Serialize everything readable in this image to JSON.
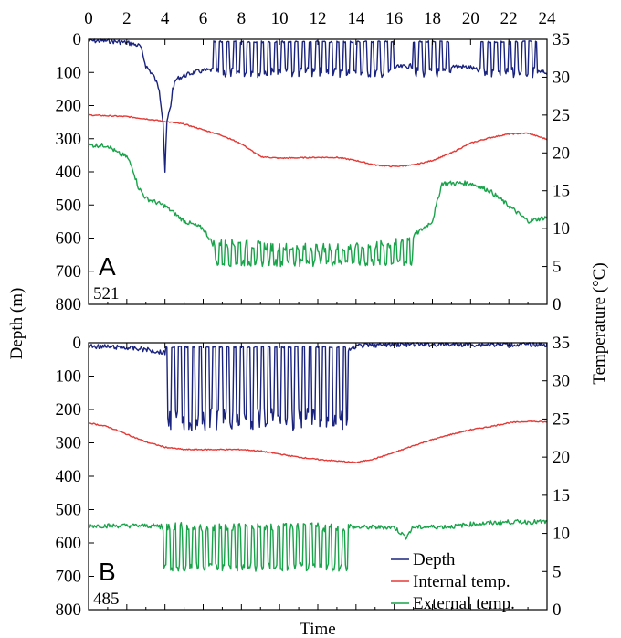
{
  "chart_data": [
    {
      "type": "line",
      "panel_label": "A",
      "tag_id": "521",
      "x_range": [
        0,
        24
      ],
      "depth_range": [
        0,
        800
      ],
      "temp_range": [
        0,
        35
      ],
      "x_ticks": [
        0,
        2,
        4,
        6,
        8,
        10,
        12,
        14,
        16,
        18,
        20,
        22,
        24
      ],
      "depth_ticks": [
        0,
        100,
        200,
        300,
        400,
        500,
        600,
        700,
        800
      ],
      "temp_ticks": [
        0,
        5,
        10,
        15,
        20,
        25,
        30,
        35
      ],
      "series": [
        {
          "name": "Depth",
          "axis": "left",
          "color": "#1a237e",
          "points": [
            [
              0,
              5
            ],
            [
              1,
              5
            ],
            [
              2,
              10
            ],
            [
              2.7,
              20
            ],
            [
              3,
              80
            ],
            [
              3.4,
              110
            ],
            [
              3.7,
              150
            ],
            [
              3.9,
              250
            ],
            [
              4.0,
              400
            ],
            [
              4.1,
              250
            ],
            [
              4.3,
              200
            ],
            [
              4.4,
              150
            ],
            [
              4.6,
              120
            ],
            [
              5,
              110
            ],
            [
              5.5,
              100
            ],
            [
              6,
              95
            ],
            [
              7,
              90
            ],
            [
              8,
              85
            ],
            [
              10,
              80
            ],
            [
              12,
              80
            ],
            [
              14,
              85
            ],
            [
              15,
              90
            ],
            [
              16,
              85
            ],
            [
              17,
              80
            ],
            [
              18,
              75
            ],
            [
              19,
              80
            ],
            [
              20,
              85
            ],
            [
              21,
              110
            ],
            [
              22,
              150
            ],
            [
              23,
              100
            ],
            [
              24,
              100
            ]
          ],
          "dive_spans": [
            [
              6.5,
              16
            ],
            [
              17,
              19
            ],
            [
              20.5,
              23.5
            ]
          ],
          "dive_depth": 100,
          "surface_depth": 5
        },
        {
          "name": "Internal temp.",
          "axis": "right",
          "color": "#e53935",
          "points": [
            [
              0,
              25
            ],
            [
              2,
              24.8
            ],
            [
              3,
              24.5
            ],
            [
              5,
              23.8
            ],
            [
              7,
              22.3
            ],
            [
              8,
              21.2
            ],
            [
              9,
              19.5
            ],
            [
              10,
              19.3
            ],
            [
              12,
              19.4
            ],
            [
              13,
              19.4
            ],
            [
              14,
              19
            ],
            [
              15,
              18.4
            ],
            [
              16,
              18.2
            ],
            [
              17,
              18.4
            ],
            [
              18,
              19
            ],
            [
              19,
              20
            ],
            [
              20,
              21.3
            ],
            [
              21,
              22
            ],
            [
              22,
              22.5
            ],
            [
              23,
              22.6
            ],
            [
              24,
              21.8
            ]
          ]
        },
        {
          "name": "External temp.",
          "axis": "right",
          "color": "#19a34a",
          "points": [
            [
              0,
              21
            ],
            [
              1,
              21
            ],
            [
              1.5,
              20
            ],
            [
              2,
              19.5
            ],
            [
              2.3,
              18
            ],
            [
              2.6,
              15.5
            ],
            [
              3,
              14
            ],
            [
              3.5,
              13.5
            ],
            [
              4,
              13
            ],
            [
              4.5,
              12
            ],
            [
              5,
              11
            ],
            [
              5.5,
              10.5
            ],
            [
              6,
              10
            ],
            [
              6.5,
              8
            ],
            [
              7,
              8
            ],
            [
              8,
              8
            ],
            [
              10,
              7.5
            ],
            [
              12,
              7.5
            ],
            [
              14,
              7.5
            ],
            [
              16,
              8
            ],
            [
              17,
              9
            ],
            [
              18,
              11
            ],
            [
              18.5,
              16
            ],
            [
              19,
              16
            ],
            [
              20,
              16
            ],
            [
              21,
              15
            ],
            [
              22,
              13
            ],
            [
              23,
              11
            ],
            [
              24,
              11.5
            ]
          ],
          "dive_spans": [
            [
              6.5,
              17
            ]
          ],
          "dive_temp": 5,
          "baseline_temp": 11
        }
      ]
    },
    {
      "type": "line",
      "panel_label": "B",
      "tag_id": "485",
      "x_range": [
        0,
        24
      ],
      "depth_range": [
        0,
        800
      ],
      "temp_range": [
        0,
        35
      ],
      "x_ticks": [
        0,
        2,
        4,
        6,
        8,
        10,
        12,
        14,
        16,
        18,
        20,
        22,
        24
      ],
      "depth_ticks": [
        0,
        100,
        200,
        300,
        400,
        500,
        600,
        700,
        800
      ],
      "temp_ticks": [
        0,
        5,
        10,
        15,
        20,
        25,
        30,
        35
      ],
      "series": [
        {
          "name": "Depth",
          "axis": "left",
          "color": "#1a237e",
          "points": [
            [
              0,
              10
            ],
            [
              2,
              15
            ],
            [
              3,
              20
            ],
            [
              4,
              30
            ],
            [
              6,
              30
            ],
            [
              10,
              30
            ],
            [
              13.5,
              30
            ],
            [
              14,
              10
            ],
            [
              16,
              5
            ],
            [
              20,
              5
            ],
            [
              22,
              5
            ],
            [
              24,
              5
            ]
          ],
          "dive_spans": [
            [
              4,
              13.6
            ]
          ],
          "dive_depth": 230,
          "surface_depth": 10
        },
        {
          "name": "Internal temp.",
          "axis": "right",
          "color": "#e53935",
          "points": [
            [
              0,
              24.5
            ],
            [
              1,
              24
            ],
            [
              2,
              23
            ],
            [
              3,
              22
            ],
            [
              4,
              21.3
            ],
            [
              5,
              21
            ],
            [
              6,
              21
            ],
            [
              7,
              21
            ],
            [
              8,
              21
            ],
            [
              9,
              20.8
            ],
            [
              10,
              20.4
            ],
            [
              11,
              20
            ],
            [
              12,
              19.7
            ],
            [
              13,
              19.5
            ],
            [
              14,
              19.3
            ],
            [
              15,
              19.8
            ],
            [
              16,
              20.6
            ],
            [
              17,
              21.5
            ],
            [
              18,
              22.3
            ],
            [
              19,
              23
            ],
            [
              20,
              23.6
            ],
            [
              21,
              24
            ],
            [
              22,
              24.5
            ],
            [
              23,
              24.7
            ],
            [
              24,
              24.6
            ]
          ]
        },
        {
          "name": "External temp.",
          "axis": "right",
          "color": "#19a34a",
          "points": [
            [
              0,
              11
            ],
            [
              3,
              11
            ],
            [
              6,
              10.8
            ],
            [
              14,
              10.8
            ],
            [
              16,
              10.8
            ],
            [
              16.6,
              9.5
            ],
            [
              17,
              10.8
            ],
            [
              19,
              10.9
            ],
            [
              20,
              11.2
            ],
            [
              22,
              11.5
            ],
            [
              24,
              11.5
            ]
          ],
          "dive_spans": [
            [
              3.7,
              13.8
            ]
          ],
          "dive_temp": 5,
          "baseline_temp": 11
        }
      ],
      "legend": {
        "placement": "bottom-right",
        "entries": [
          {
            "label": "Depth",
            "color": "#1a237e"
          },
          {
            "label": "Internal temp.",
            "color": "#e53935"
          },
          {
            "label": "External temp.",
            "color": "#19a34a"
          }
        ]
      }
    }
  ],
  "axes": {
    "xlabel": "Time",
    "ylabel_left": "Depth (m)",
    "ylabel_right": "Temperature (°C)"
  }
}
